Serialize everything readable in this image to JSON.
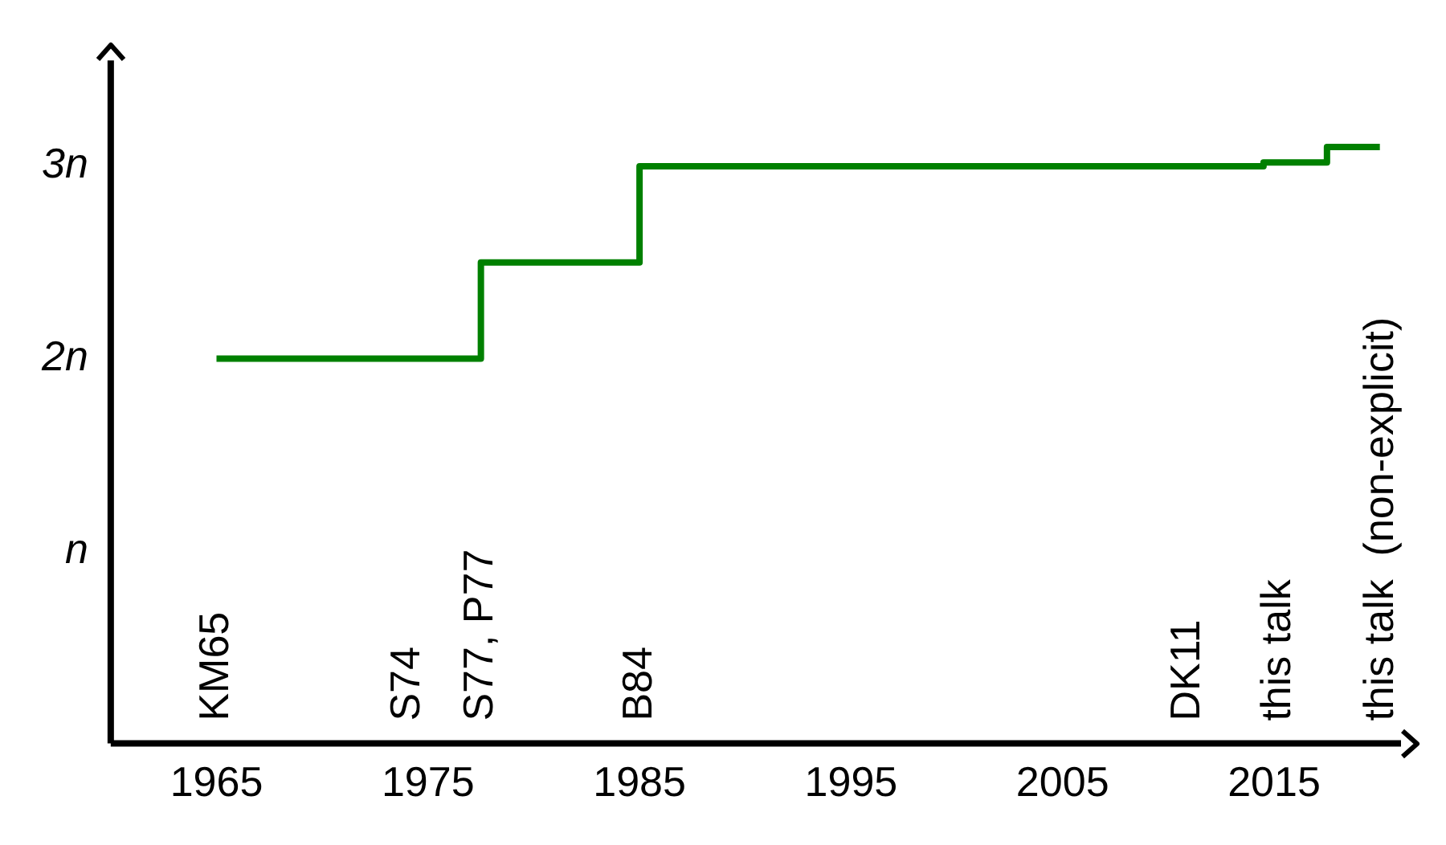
{
  "chart_data": {
    "type": "step",
    "x": [
      1965,
      1977.5,
      1985,
      2014.5,
      2017.5,
      2020
    ],
    "series": [
      {
        "color": "#008000",
        "values": [
          2,
          2.5,
          3,
          3.02,
          3.1,
          3.1
        ]
      }
    ],
    "xlim": [
      1960,
      2021
    ],
    "xticks": [
      1965,
      1975,
      1985,
      1995,
      2005,
      2015
    ],
    "ylim": [
      0,
      3.55
    ],
    "yticks": [
      {
        "value": 1,
        "label": "n"
      },
      {
        "value": 2,
        "label": "2n"
      },
      {
        "value": 3,
        "label": "3n"
      }
    ],
    "grid": false,
    "legend": false,
    "marker": "none",
    "line_style": "solid",
    "annotations": [
      "KM65",
      "S74",
      "S77, P77",
      "B84",
      "DK11",
      "this talk",
      "this talk  (non-explicit)"
    ]
  }
}
